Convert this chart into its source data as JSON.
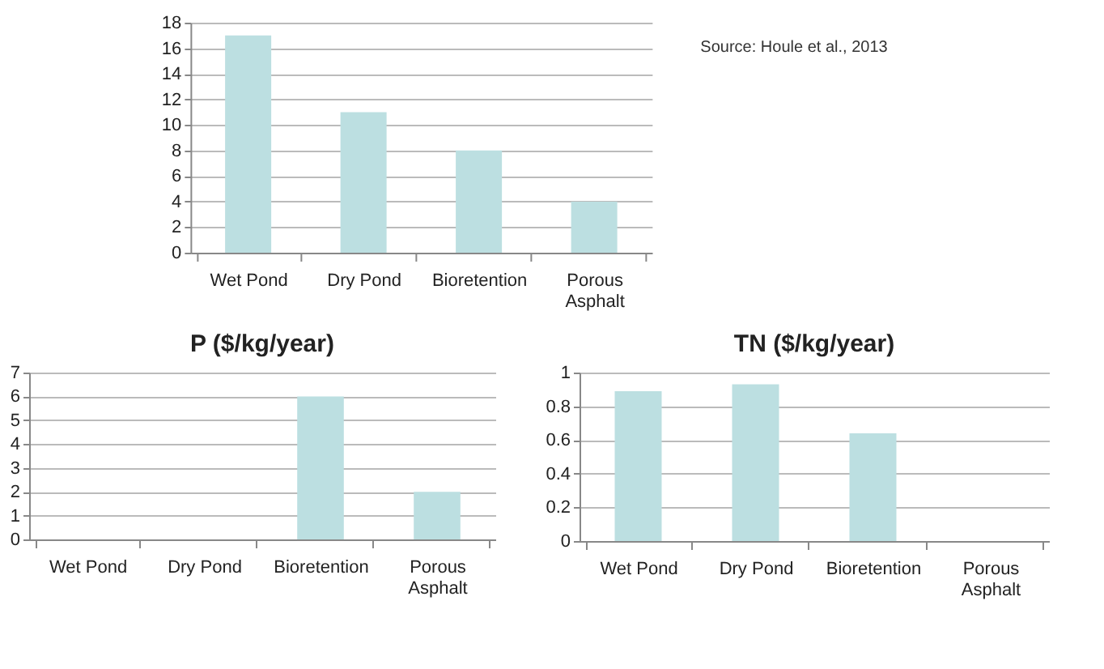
{
  "chart_data": [
    {
      "type": "bar",
      "categories": [
        "Wet Pond",
        "Dry Pond",
        "Bioretention",
        "Porous Asphalt"
      ],
      "values": [
        17,
        11,
        8,
        4
      ],
      "color": "#bcdfe1",
      "ylim": [
        0,
        18
      ],
      "yticks": [
        0,
        2,
        4,
        6,
        8,
        10,
        12,
        14,
        16,
        18
      ],
      "grid": "y",
      "annotations": [
        "Source: Houle et al., 2013"
      ]
    },
    {
      "type": "bar",
      "title": "P ($/kg/year)",
      "categories": [
        "Wet Pond",
        "Dry Pond",
        "Bioretention",
        "Porous Asphalt"
      ],
      "values": [
        null,
        null,
        6,
        2
      ],
      "color": "#bcdfe1",
      "ylim": [
        0,
        7
      ],
      "yticks": [
        0,
        1,
        2,
        3,
        4,
        5,
        6,
        7
      ],
      "grid": "y"
    },
    {
      "type": "bar",
      "title": "TN ($/kg/year)",
      "categories": [
        "Wet Pond",
        "Dry Pond",
        "Bioretention",
        "Porous Asphalt"
      ],
      "values": [
        0.89,
        0.93,
        0.64,
        null
      ],
      "color": "#bcdfe1",
      "ylim": [
        0,
        1
      ],
      "yticks": [
        0,
        0.2,
        0.4,
        0.6,
        0.8,
        1
      ],
      "grid": "y"
    }
  ]
}
